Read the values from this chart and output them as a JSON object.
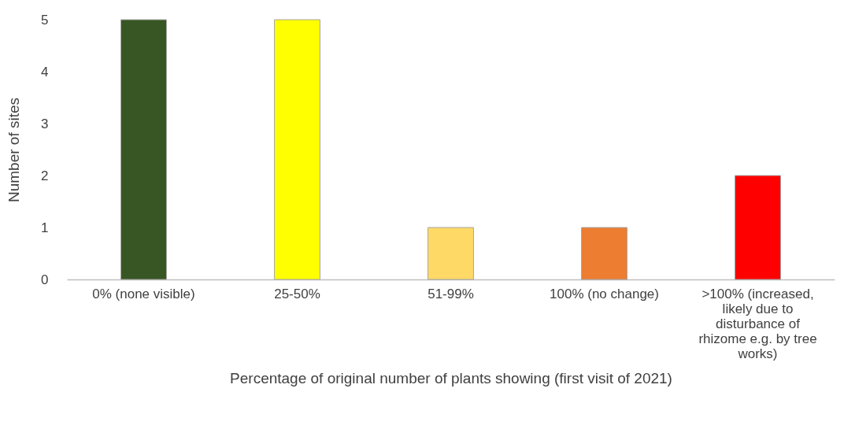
{
  "chart_data": {
    "type": "bar",
    "xlabel": "Percentage of original number of plants showing  (first visit of 2021)",
    "ylabel": "Number of sites",
    "categories": [
      "0% (none visible)",
      "25-50%",
      "51-99%",
      "100% (no change)",
      ">100% (increased, likely due to disturbance of rhizome e.g. by tree works)"
    ],
    "values": [
      5,
      5,
      1,
      1,
      2
    ],
    "colors": [
      "#375623",
      "#ffff00",
      "#ffd966",
      "#ed7d31",
      "#ff0000"
    ],
    "ylim": [
      0,
      5
    ],
    "yticks": [
      0,
      1,
      2,
      3,
      4,
      5
    ],
    "grid": false
  }
}
